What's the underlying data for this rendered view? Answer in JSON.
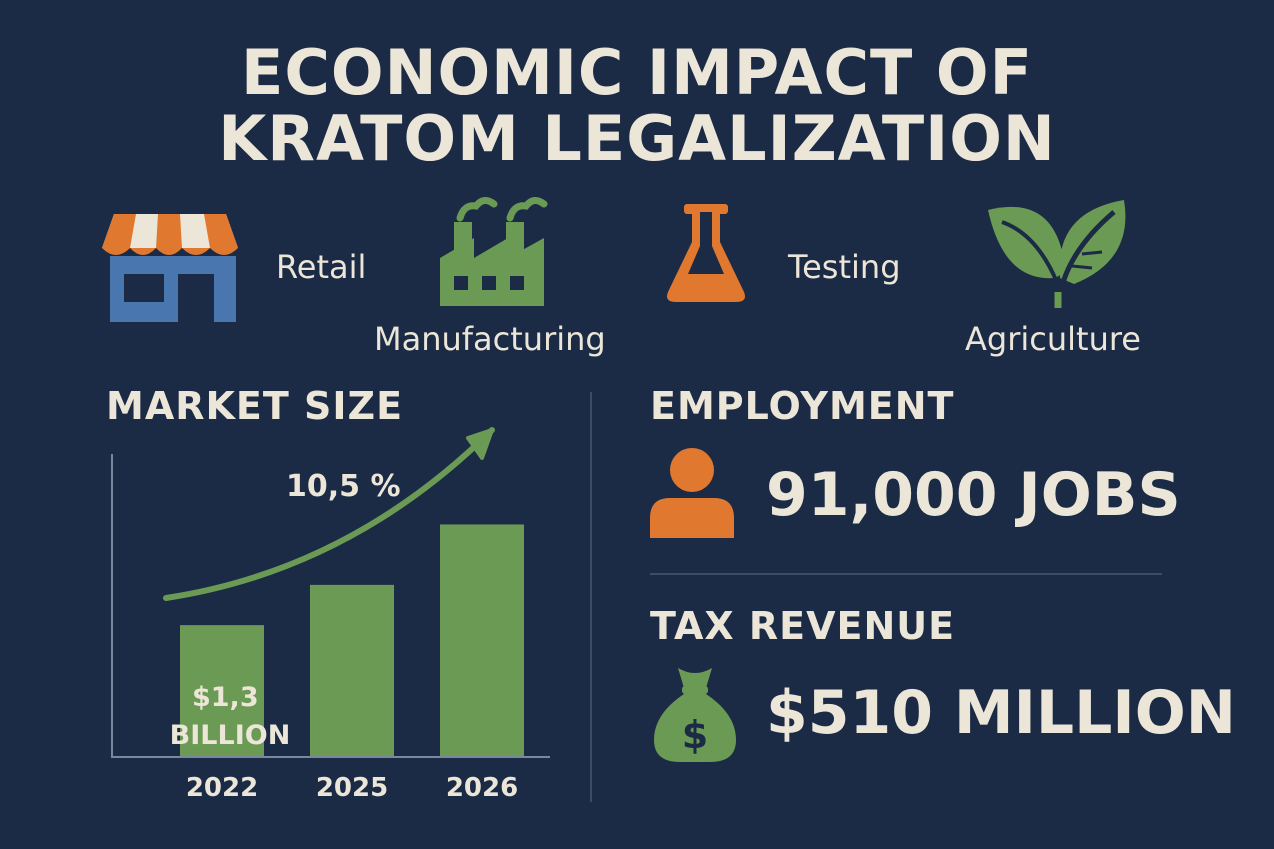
{
  "title": {
    "line1": "ECONOMIC IMPACT OF",
    "line2": "KRATOM LEGALIZATION"
  },
  "sectors": [
    {
      "label": "Retail",
      "icon": "storefront-icon"
    },
    {
      "label": "Manufacturing",
      "icon": "factory-icon"
    },
    {
      "label": "Testing",
      "icon": "flask-icon"
    },
    {
      "label": "Agriculture",
      "icon": "leaf-icon"
    }
  ],
  "colors": {
    "background": "#1b2a45",
    "text": "#ece6d8",
    "orange": "#e0792f",
    "green": "#6b9a55",
    "blue": "#4a76b0",
    "divider": "#3e4c66"
  },
  "market": {
    "heading": "MARKET SIZE"
  },
  "chart_data": {
    "type": "bar",
    "title": "MARKET SIZE",
    "categories": [
      "2022",
      "2025",
      "2026"
    ],
    "values": [
      1.3,
      1.7,
      2.3
    ],
    "value_labels": [
      "$1,3 BILLION",
      "",
      ""
    ],
    "growth_label": "10,5 %",
    "trend_arrow": true,
    "xlabel": "",
    "ylabel": "",
    "ylim": [
      0,
      3.0
    ],
    "grid": false
  },
  "employment": {
    "heading": "EMPLOYMENT",
    "value": "91,000 JOBS",
    "icon": "person-icon"
  },
  "tax": {
    "heading": "TAX REVENUE",
    "value": "$510 MILLION",
    "icon": "money-bag-icon"
  }
}
